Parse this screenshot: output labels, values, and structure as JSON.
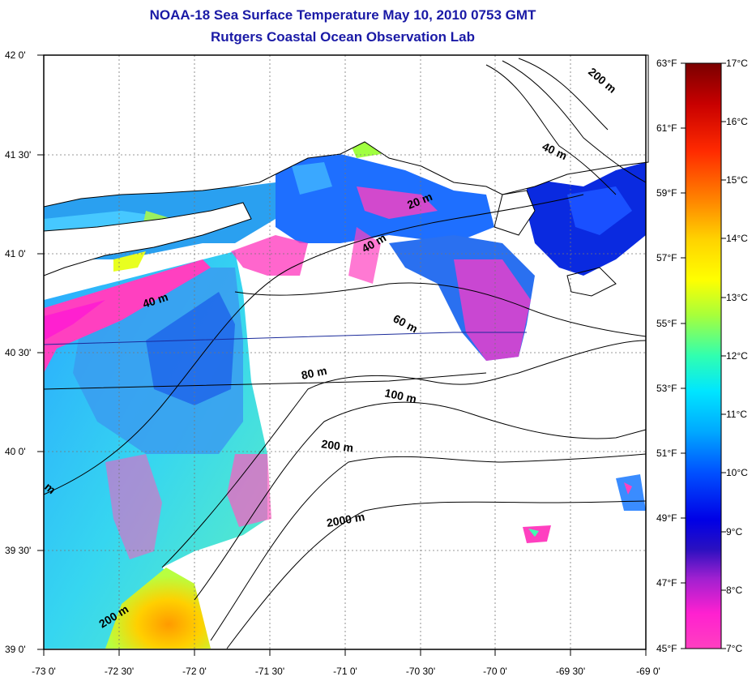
{
  "header": {
    "title": "NOAA-18 Sea Surface Temperature May 10, 2010 0753 GMT",
    "subtitle": "Rutgers Coastal Ocean Observation Lab"
  },
  "map": {
    "lat_labels": [
      "42 0'",
      "41 30'",
      "41 0'",
      "40 30'",
      "40 0'",
      "39 30'",
      "39 0'"
    ],
    "lon_labels": [
      "-73 0'",
      "-72 30'",
      "-72 0'",
      "-71 30'",
      "-71 0'",
      "-70 30'",
      "-70 0'",
      "-69 30'",
      "-69 0'"
    ],
    "contour_labels": [
      "20 m",
      "40 m",
      "40 m",
      "40 m",
      "60 m",
      "80 m",
      "100 m",
      "200 m",
      "200 m",
      "200 m",
      "2000 m",
      "m"
    ]
  },
  "colorbar": {
    "fahrenheit": [
      "63°F",
      "61°F",
      "59°F",
      "57°F",
      "55°F",
      "53°F",
      "51°F",
      "49°F",
      "47°F",
      "45°F"
    ],
    "celsius": [
      "17°C",
      "16°C",
      "15°C",
      "14°C",
      "13°C",
      "12°C",
      "11°C",
      "10°C",
      "9°C",
      "8°C",
      "7°C"
    ],
    "colors": [
      "#7a0000",
      "#c80000",
      "#ff2a00",
      "#ff8000",
      "#ffd200",
      "#ffff00",
      "#a8ff3a",
      "#30ffb0",
      "#00e6ff",
      "#00a8ff",
      "#0050ff",
      "#0000e6",
      "#4a1aa8",
      "#a020d0",
      "#ff20d0",
      "#ff40b0"
    ]
  }
}
